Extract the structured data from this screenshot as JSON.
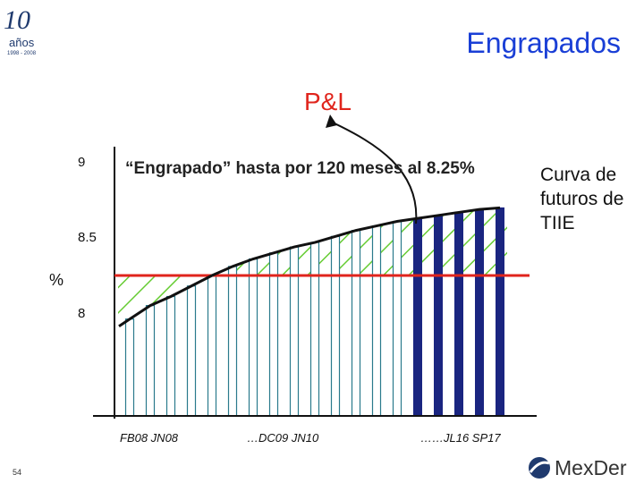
{
  "header": {
    "title": "Engrapados",
    "logo_number": "10",
    "logo_word": "años",
    "logo_years": "1998 - 2008"
  },
  "footer": {
    "page_number": "54",
    "brand": "MexDer"
  },
  "chart_data": {
    "type": "bar",
    "title": "P&L",
    "annotation": "“Engrapado” hasta por 120 meses al 8.25%",
    "curve_label": "Curva de futuros de TIIE",
    "ylabel": "%",
    "y_ticks": [
      "9",
      "8.5",
      "8"
    ],
    "x_tick_labels": [
      "FB08 JN08",
      "…DC09 JN10",
      "……JL16 SP17"
    ],
    "ylim": [
      7.5,
      9.0
    ],
    "fixed_rate": 8.25,
    "colors": {
      "fixed_line": "#e0241c",
      "curve": "#111111",
      "hatch": "#66cc33",
      "light_bar": "#2a7a8c",
      "dark_bar": "#1a2580",
      "pl_arrow": "#111111"
    },
    "series": [
      {
        "values": [
          7.96,
          8.05,
          8.11,
          8.18,
          8.25,
          8.31,
          8.36,
          8.4,
          8.44,
          8.47,
          8.51,
          8.55,
          8.58,
          8.61,
          8.63,
          8.65,
          8.67,
          8.69,
          8.7
        ]
      }
    ],
    "dark_from_index": 14
  }
}
